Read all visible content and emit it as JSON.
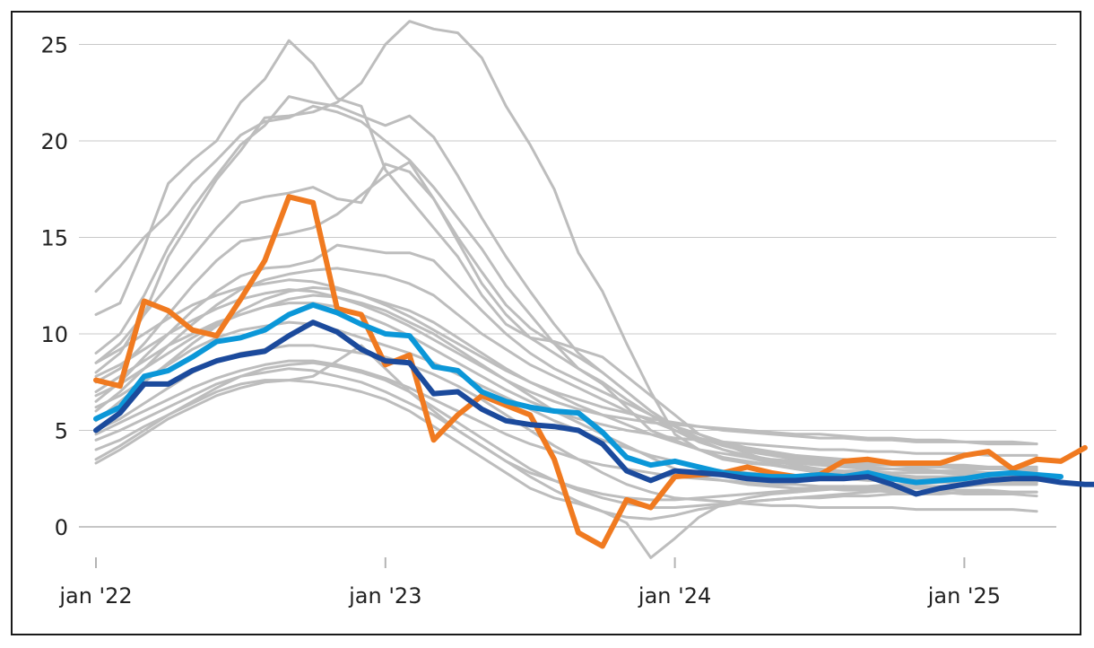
{
  "chart_data": {
    "type": "line",
    "title": "",
    "xlabel": "",
    "ylabel": "",
    "ylim": [
      -2,
      26
    ],
    "grid": true,
    "y_ticks": [
      {
        "value": 0,
        "label": "0"
      },
      {
        "value": 5,
        "label": "5"
      },
      {
        "value": 10,
        "label": "10"
      },
      {
        "value": 15,
        "label": "15"
      },
      {
        "value": 20,
        "label": "20"
      },
      {
        "value": 25,
        "label": "25"
      }
    ],
    "x_ticks": [
      {
        "month": 0,
        "label": "jan '22"
      },
      {
        "month": 12,
        "label": "jan '23"
      },
      {
        "month": 24,
        "label": "jan '24"
      },
      {
        "month": 36,
        "label": "jan '25"
      }
    ],
    "x_range": [
      0,
      39
    ],
    "series": [
      {
        "name": "grey-1",
        "color": "#bdbdbd",
        "width": 3,
        "values": [
          12.2,
          13.5,
          15.0,
          16.2,
          17.8,
          19.0,
          20.3,
          21.0,
          21.2,
          21.8,
          21.5,
          21.0,
          20.0,
          19.0,
          17.6,
          16.0,
          14.4,
          12.5,
          11.0,
          9.5,
          8.2,
          7.4,
          6.2,
          5.0,
          4.5,
          4.0,
          3.6,
          3.4,
          3.2,
          3.0,
          2.9,
          2.8,
          2.8,
          2.7,
          2.6,
          2.6,
          2.6,
          2.5,
          2.6,
          2.5
        ]
      },
      {
        "name": "grey-2",
        "color": "#bdbdbd",
        "width": 3,
        "values": [
          11.0,
          11.6,
          14.5,
          17.8,
          19.0,
          20.0,
          22.0,
          23.2,
          25.2,
          24.0,
          22.2,
          21.8,
          18.5,
          17.0,
          15.5,
          14.0,
          12.0,
          10.5,
          9.8,
          9.6,
          9.2,
          8.8,
          7.8,
          6.8,
          5.8,
          4.8,
          4.3,
          3.8,
          3.4,
          3.2,
          3.0,
          2.8,
          2.7,
          2.6,
          2.5,
          2.5,
          2.4,
          2.4,
          2.3,
          2.3
        ]
      },
      {
        "name": "grey-3",
        "color": "#bdbdbd",
        "width": 3,
        "values": [
          8.0,
          9.0,
          11.0,
          14.0,
          16.0,
          18.0,
          19.5,
          21.2,
          21.3,
          21.5,
          22.0,
          23.0,
          25.0,
          26.2,
          25.8,
          25.6,
          24.3,
          21.8,
          19.8,
          17.5,
          14.2,
          12.2,
          9.5,
          7.0,
          4.8,
          4.0,
          3.5,
          3.3,
          3.2,
          3.1,
          3.0,
          2.9,
          2.9,
          2.8,
          2.8,
          2.8,
          2.7,
          2.8,
          2.7,
          2.7
        ]
      },
      {
        "name": "grey-4",
        "color": "#bdbdbd",
        "width": 3,
        "values": [
          9.0,
          10.0,
          12.0,
          14.5,
          16.5,
          18.2,
          19.8,
          20.8,
          22.3,
          22.0,
          21.8,
          21.3,
          20.8,
          21.3,
          20.2,
          18.2,
          16.0,
          14.0,
          12.2,
          10.5,
          9.0,
          8.0,
          7.0,
          6.0,
          5.2,
          4.5,
          4.0,
          3.6,
          3.3,
          3.0,
          2.8,
          2.7,
          2.6,
          2.5,
          2.5,
          2.4,
          2.4,
          2.4,
          2.3,
          2.3
        ]
      },
      {
        "name": "grey-5",
        "color": "#bdbdbd",
        "width": 3,
        "values": [
          8.5,
          9.5,
          11.0,
          12.5,
          14.0,
          15.5,
          16.8,
          17.1,
          17.3,
          17.6,
          17.0,
          16.8,
          18.8,
          18.4,
          17.0,
          15.0,
          13.2,
          11.5,
          10.3,
          9.5,
          8.8,
          8.0,
          7.0,
          6.0,
          5.2,
          4.6,
          4.2,
          3.9,
          3.7,
          3.5,
          3.4,
          3.3,
          3.2,
          3.2,
          3.1,
          3.1,
          3.0,
          3.0,
          3.0,
          2.9
        ]
      },
      {
        "name": "grey-6",
        "color": "#bdbdbd",
        "width": 3,
        "values": [
          7.5,
          8.2,
          9.5,
          11.0,
          12.5,
          13.8,
          14.8,
          15.0,
          15.2,
          15.5,
          16.2,
          17.2,
          18.2,
          18.9,
          17.0,
          14.8,
          12.6,
          11.0,
          9.8,
          9.0,
          8.2,
          7.5,
          6.6,
          5.8,
          5.0,
          4.4,
          4.0,
          3.7,
          3.5,
          3.4,
          3.3,
          3.2,
          3.1,
          3.0,
          3.0,
          2.9,
          2.9,
          2.8,
          2.8,
          2.8
        ]
      },
      {
        "name": "grey-7",
        "color": "#bdbdbd",
        "width": 3,
        "values": [
          6.5,
          7.5,
          8.8,
          10.0,
          11.2,
          12.2,
          13.0,
          13.4,
          13.5,
          13.8,
          14.6,
          14.4,
          14.2,
          14.2,
          13.8,
          12.5,
          11.2,
          10.0,
          9.0,
          8.2,
          7.6,
          7.0,
          6.4,
          5.8,
          5.2,
          4.8,
          4.4,
          4.1,
          3.9,
          3.7,
          3.6,
          3.5,
          3.4,
          3.3,
          3.3,
          3.2,
          3.2,
          3.1,
          3.1,
          3.1
        ]
      },
      {
        "name": "grey-8",
        "color": "#bdbdbd",
        "width": 3,
        "values": [
          6.0,
          7.0,
          8.2,
          9.4,
          10.5,
          11.5,
          12.3,
          12.8,
          13.1,
          13.3,
          13.4,
          13.2,
          13.0,
          12.6,
          12.0,
          11.0,
          10.0,
          9.2,
          8.4,
          7.8,
          7.2,
          6.6,
          6.0,
          5.5,
          5.0,
          4.6,
          4.3,
          4.0,
          3.8,
          3.6,
          3.5,
          3.4,
          3.3,
          3.2,
          3.2,
          3.1,
          3.1,
          3.0,
          3.0,
          3.0
        ]
      },
      {
        "name": "grey-9",
        "color": "#bdbdbd",
        "width": 3,
        "values": [
          5.5,
          6.5,
          7.5,
          8.5,
          9.5,
          10.4,
          11.2,
          11.8,
          12.2,
          12.4,
          12.3,
          12.0,
          11.6,
          11.2,
          10.6,
          9.8,
          9.0,
          8.2,
          7.5,
          6.9,
          6.3,
          5.8,
          5.3,
          4.8,
          4.4,
          4.0,
          3.8,
          3.6,
          3.4,
          3.3,
          3.2,
          3.1,
          3.0,
          3.0,
          2.9,
          2.9,
          2.8,
          2.8,
          2.8,
          2.7
        ]
      },
      {
        "name": "grey-10",
        "color": "#bdbdbd",
        "width": 3,
        "values": [
          7.0,
          7.8,
          8.6,
          9.4,
          10.0,
          10.6,
          11.0,
          11.4,
          11.8,
          12.0,
          11.9,
          11.6,
          11.2,
          10.6,
          10.0,
          9.2,
          8.4,
          7.6,
          6.8,
          6.0,
          5.4,
          4.8,
          4.2,
          3.6,
          3.0,
          2.6,
          2.4,
          2.2,
          2.1,
          2.0,
          2.0,
          1.9,
          1.9,
          1.8,
          1.8,
          1.8,
          1.7,
          1.7,
          1.7,
          1.6
        ]
      },
      {
        "name": "grey-11",
        "color": "#bdbdbd",
        "width": 3,
        "values": [
          5.0,
          5.6,
          6.4,
          7.2,
          8.0,
          8.6,
          9.0,
          9.2,
          9.4,
          9.4,
          9.2,
          9.0,
          8.8,
          8.4,
          7.9,
          7.3,
          6.6,
          5.8,
          5.0,
          4.2,
          3.5,
          2.8,
          2.2,
          1.8,
          1.5,
          1.4,
          1.3,
          1.2,
          1.1,
          1.1,
          1.0,
          1.0,
          1.0,
          1.0,
          0.9,
          0.9,
          0.9,
          0.9,
          0.9,
          0.8
        ]
      },
      {
        "name": "grey-12",
        "color": "#bdbdbd",
        "width": 3,
        "values": [
          4.5,
          5.0,
          5.6,
          6.2,
          6.8,
          7.4,
          7.8,
          8.0,
          8.2,
          8.1,
          7.8,
          7.5,
          7.0,
          6.4,
          5.8,
          5.0,
          4.2,
          3.4,
          2.6,
          1.9,
          1.3,
          0.8,
          0.2,
          -1.6,
          -0.6,
          0.5,
          1.2,
          1.5,
          1.7,
          1.8,
          1.9,
          2.0,
          2.0,
          2.1,
          2.1,
          2.1,
          2.1,
          2.2,
          2.2,
          2.2
        ]
      },
      {
        "name": "grey-13",
        "color": "#bdbdbd",
        "width": 3,
        "values": [
          4.0,
          4.5,
          5.2,
          5.8,
          6.4,
          7.0,
          7.4,
          7.6,
          7.6,
          7.5,
          7.3,
          7.0,
          6.6,
          6.0,
          5.2,
          4.4,
          3.6,
          2.8,
          2.0,
          1.5,
          1.2,
          0.8,
          0.5,
          0.4,
          0.6,
          0.9,
          1.1,
          1.3,
          1.4,
          1.5,
          1.6,
          1.7,
          1.8,
          1.9,
          2.0,
          2.1,
          2.2,
          2.2,
          2.3,
          2.3
        ]
      },
      {
        "name": "grey-14",
        "color": "#bdbdbd",
        "width": 3,
        "values": [
          3.5,
          4.2,
          5.0,
          5.8,
          6.5,
          7.2,
          7.8,
          8.2,
          8.4,
          8.5,
          8.3,
          8.0,
          7.6,
          7.0,
          6.2,
          5.4,
          4.6,
          3.8,
          3.0,
          2.4,
          1.9,
          1.5,
          1.2,
          1.0,
          1.0,
          1.1,
          1.2,
          1.3,
          1.4,
          1.5,
          1.5,
          1.6,
          1.6,
          1.7,
          1.7,
          1.7,
          1.8,
          1.8,
          1.8,
          1.8
        ]
      },
      {
        "name": "grey-15",
        "color": "#bdbdbd",
        "width": 3,
        "values": [
          3.3,
          4.0,
          4.8,
          5.6,
          6.2,
          6.8,
          7.2,
          7.5,
          7.6,
          7.8,
          8.6,
          9.4,
          8.2,
          7.0,
          6.0,
          5.0,
          4.2,
          3.4,
          2.8,
          2.4,
          2.0,
          1.7,
          1.5,
          1.4,
          1.4,
          1.5,
          1.6,
          1.7,
          1.8,
          1.9,
          2.0,
          2.1,
          2.1,
          2.2,
          2.2,
          2.3,
          2.3,
          2.4,
          2.4,
          2.4
        ]
      },
      {
        "name": "grey-16",
        "color": "#bdbdbd",
        "width": 3,
        "values": [
          6.2,
          6.8,
          7.6,
          8.4,
          9.2,
          9.8,
          10.2,
          10.4,
          10.6,
          10.5,
          10.2,
          9.8,
          9.4,
          9.0,
          8.5,
          7.9,
          7.3,
          6.7,
          6.1,
          5.5,
          5.0,
          4.5,
          4.1,
          3.7,
          3.4,
          3.1,
          2.9,
          2.8,
          2.7,
          2.6,
          2.5,
          2.5,
          2.4,
          2.4,
          2.3,
          2.3,
          2.3,
          2.2,
          2.2,
          2.2
        ]
      },
      {
        "name": "grey-17",
        "color": "#bdbdbd",
        "width": 3,
        "values": [
          8.5,
          9.2,
          10.0,
          10.8,
          11.5,
          12.0,
          12.4,
          12.6,
          12.8,
          12.7,
          12.4,
          12.0,
          11.5,
          10.9,
          10.2,
          9.5,
          8.8,
          8.1,
          7.5,
          7.0,
          6.6,
          6.2,
          5.9,
          5.6,
          5.4,
          5.2,
          5.0,
          4.9,
          4.8,
          4.7,
          4.6,
          4.6,
          4.5,
          4.5,
          4.4,
          4.4,
          4.4,
          4.3,
          4.3,
          4.3
        ]
      },
      {
        "name": "grey-18",
        "color": "#bdbdbd",
        "width": 3,
        "values": [
          7.8,
          8.4,
          9.2,
          10.0,
          10.7,
          11.3,
          11.8,
          12.1,
          12.3,
          12.2,
          11.9,
          11.5,
          11.0,
          10.4,
          9.7,
          9.0,
          8.3,
          7.6,
          7.0,
          6.5,
          6.1,
          5.8,
          5.6,
          5.4,
          5.3,
          5.2,
          5.1,
          5.0,
          4.9,
          4.8,
          4.8,
          4.7,
          4.6,
          4.6,
          4.5,
          4.5,
          4.4,
          4.4,
          4.4,
          4.3
        ]
      },
      {
        "name": "grey-19",
        "color": "#bdbdbd",
        "width": 3,
        "values": [
          4.8,
          5.4,
          6.0,
          6.6,
          7.2,
          7.7,
          8.1,
          8.4,
          8.6,
          8.6,
          8.4,
          8.1,
          7.7,
          7.2,
          6.6,
          6.0,
          5.4,
          4.8,
          4.3,
          3.9,
          3.5,
          3.2,
          3.0,
          2.8,
          2.6,
          2.5,
          2.4,
          2.3,
          2.2,
          2.2,
          2.1,
          2.1,
          2.0,
          2.0,
          2.0,
          1.9,
          1.9,
          1.9,
          1.8,
          1.8
        ]
      },
      {
        "name": "grey-20",
        "color": "#bdbdbd",
        "width": 3,
        "values": [
          6.8,
          7.4,
          8.2,
          9.0,
          9.8,
          10.5,
          11.0,
          11.4,
          11.6,
          11.6,
          11.4,
          11.0,
          10.5,
          9.9,
          9.2,
          8.5,
          7.8,
          7.1,
          6.5,
          6.0,
          5.6,
          5.3,
          5.0,
          4.8,
          4.6,
          4.5,
          4.4,
          4.3,
          4.2,
          4.1,
          4.0,
          4.0,
          3.9,
          3.9,
          3.8,
          3.8,
          3.8,
          3.7,
          3.7,
          3.7
        ]
      },
      {
        "name": "orange",
        "color": "#f07a20",
        "width": 6,
        "values": [
          7.6,
          7.3,
          11.7,
          11.2,
          10.2,
          9.9,
          11.8,
          13.8,
          17.1,
          16.8,
          11.3,
          11.0,
          8.4,
          8.9,
          4.5,
          5.8,
          6.8,
          6.3,
          5.8,
          3.5,
          -0.3,
          -1.0,
          1.4,
          1.0,
          2.6,
          2.7,
          2.8,
          3.1,
          2.8,
          2.6,
          2.7,
          3.4,
          3.5,
          3.3,
          3.3,
          3.3,
          3.7,
          3.9,
          3.0,
          3.5,
          3.4,
          4.1
        ]
      },
      {
        "name": "light-blue",
        "color": "#0b97d8",
        "width": 6,
        "values": [
          5.6,
          6.2,
          7.8,
          8.1,
          8.8,
          9.6,
          9.8,
          10.2,
          11.0,
          11.5,
          11.1,
          10.5,
          10.0,
          9.9,
          8.3,
          8.1,
          7.0,
          6.5,
          6.2,
          6.0,
          5.9,
          4.9,
          3.6,
          3.2,
          3.4,
          3.1,
          2.8,
          2.7,
          2.6,
          2.6,
          2.7,
          2.6,
          2.8,
          2.5,
          2.3,
          2.4,
          2.5,
          2.7,
          2.8,
          2.7,
          2.6
        ]
      },
      {
        "name": "dark-blue",
        "color": "#1b4a9c",
        "width": 6,
        "values": [
          5.0,
          5.9,
          7.4,
          7.4,
          8.1,
          8.6,
          8.9,
          9.1,
          9.9,
          10.6,
          10.1,
          9.2,
          8.6,
          8.5,
          6.9,
          7.0,
          6.1,
          5.5,
          5.3,
          5.2,
          5.0,
          4.3,
          2.9,
          2.4,
          2.9,
          2.8,
          2.7,
          2.5,
          2.4,
          2.4,
          2.5,
          2.5,
          2.6,
          2.2,
          1.7,
          2.0,
          2.2,
          2.4,
          2.5,
          2.5,
          2.3,
          2.2,
          2.2
        ]
      }
    ]
  }
}
